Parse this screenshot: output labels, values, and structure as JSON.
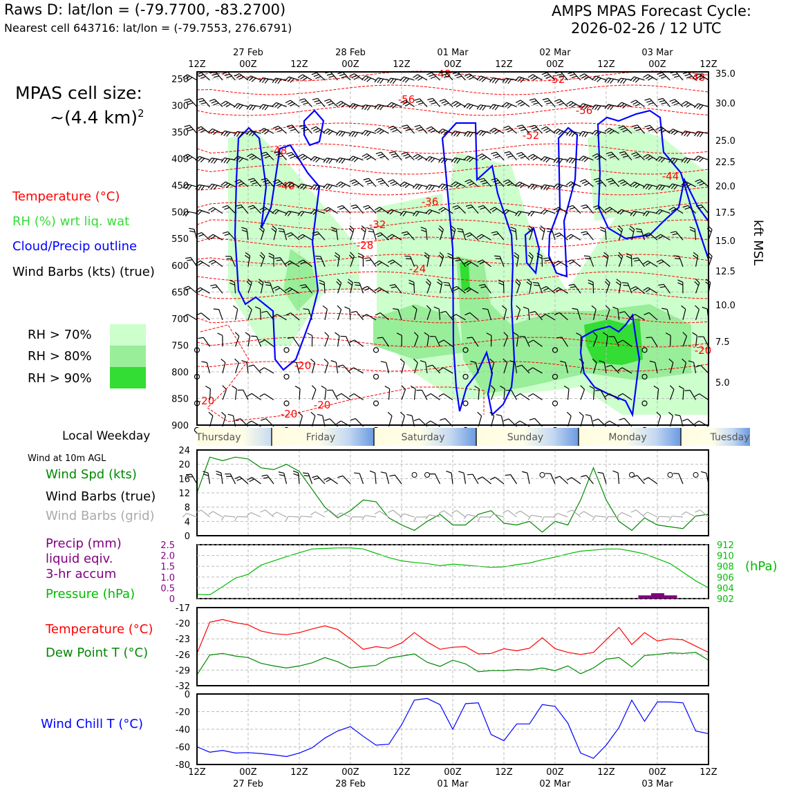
{
  "header": {
    "station_line": "Raws D: lat/lon = (-79.7700, -83.2700)",
    "cell_line": "Nearest cell 643716: lat/lon = (-79.7553, 276.6791)",
    "cycle_title": "AMPS MPAS Forecast Cycle:",
    "cycle_time": "2026-02-26 / 12 UTC"
  },
  "left_legend": {
    "cell_size_label": "MPAS cell size:",
    "cell_size_value": "~(4.4 km)",
    "cell_size_exp": "2",
    "temperature": "Temperature (°C)",
    "rh": "RH (%) wrt liq. wat",
    "cloud": "Cloud/Precip outline",
    "wind_barbs": "Wind Barbs (kts) (true)",
    "rh70": "RH > 70%",
    "rh80": "RH > 80%",
    "rh90": "RH > 90%",
    "weekday_label": "Local Weekday",
    "wind10": "Wind at 10m AGL",
    "wind_spd": "Wind Spd (kts)",
    "barbs_true": "Wind Barbs (true)",
    "barbs_grid": "Wind Barbs (grid)",
    "precip1": "Precip (mm)",
    "precip2": "liquid eqiv.",
    "precip3": "3-hr accum",
    "pressure": "Pressure (hPa)",
    "temp2": "Temperature (°C)",
    "dew": "Dew Point T (°C)",
    "windchill": "Wind Chill T (°C)",
    "hpa_unit": "(hPa)",
    "kft_label": "kft MSL"
  },
  "colors": {
    "temperature": "#ff0000",
    "rh_text": "#33dd33",
    "rh70": "#ccffcc",
    "rh80": "#99ee99",
    "rh90": "#33dd33",
    "cloud": "#0000ff",
    "wind_green": "#008800",
    "grid_barb": "#aaaaaa",
    "precip": "#800080",
    "pressure": "#00bb00",
    "dew": "#008800",
    "windchill": "#0000ff"
  },
  "chart_data": [
    {
      "type": "area",
      "name": "vertical profile",
      "y_pressure_ticks": [
        "250",
        "300",
        "350",
        "400",
        "450",
        "500",
        "550",
        "600",
        "650",
        "700",
        "750",
        "800",
        "850",
        "900"
      ],
      "y_kft_ticks": [
        "35.0",
        "30.0",
        "25.0",
        "22.5",
        "20.0",
        "17.5",
        "15.0",
        "12.5",
        "10.0",
        "7.5",
        "5.0"
      ],
      "x_top_hours": [
        "12Z",
        "00Z",
        "12Z",
        "00Z",
        "12Z",
        "00Z",
        "12Z",
        "00Z",
        "12Z",
        "00Z",
        "12Z"
      ],
      "x_top_dates": [
        "27 Feb",
        "28 Feb",
        "01 Mar",
        "02 Mar",
        "03 Mar"
      ],
      "temperature_labels": [
        "-48",
        "-52",
        "-48",
        "-56",
        "-56",
        "-52",
        "-48",
        "-44",
        "-40",
        "-36",
        "-32",
        "-28",
        "-24",
        "-20",
        "-20",
        "-20",
        "-20",
        "-20"
      ]
    },
    {
      "type": "table",
      "name": "local weekday",
      "days": [
        "Thursday",
        "Friday",
        "Saturday",
        "Sunday",
        "Monday",
        "Tuesday"
      ]
    },
    {
      "type": "line",
      "name": "wind at 10m",
      "ylim": [
        0,
        24
      ],
      "yticks": [
        "24",
        "20",
        "16",
        "12",
        "8",
        "4",
        "0"
      ],
      "series": [
        {
          "name": "Wind Spd (kts)",
          "values": [
            12,
            22,
            21,
            22,
            21.5,
            19,
            18.5,
            20,
            18,
            13,
            8,
            5,
            7,
            10,
            9.5,
            5,
            3,
            1.5,
            4,
            6,
            3,
            3,
            6,
            7,
            3.5,
            3,
            4,
            1,
            4,
            3,
            10,
            19,
            10,
            4,
            1.5,
            5,
            3,
            2.5,
            2,
            5.5,
            6
          ]
        }
      ]
    },
    {
      "type": "line",
      "name": "pressure and precip",
      "ylim_precip": [
        0,
        2.5
      ],
      "precip_ticks": [
        "2.5",
        "2.0",
        "1.5",
        "1.0",
        "0.5",
        "0"
      ],
      "ylim_pressure": [
        902,
        912
      ],
      "pressure_ticks": [
        "912",
        "910",
        "908",
        "906",
        "904",
        "902"
      ],
      "series": [
        {
          "name": "Pressure (hPa)",
          "values": [
            902.8,
            902.7,
            904.2,
            905.8,
            906.5,
            908.2,
            909.0,
            909.8,
            910.5,
            911.2,
            911.3,
            911.4,
            911.4,
            911.2,
            910.4,
            909.6,
            909.0,
            908.7,
            908.5,
            908.1,
            908.4,
            908.2,
            908.0,
            907.8,
            907.9,
            908.3,
            908.6,
            909.2,
            909.7,
            910.3,
            910.8,
            911.0,
            911.2,
            911.2,
            910.8,
            910.3,
            909.4,
            908.5,
            906.9,
            905.3,
            904.0
          ]
        },
        {
          "name": "Precip (mm)",
          "values": [
            0,
            0,
            0,
            0,
            0,
            0,
            0,
            0,
            0,
            0,
            0,
            0,
            0,
            0,
            0,
            0,
            0,
            0,
            0,
            0,
            0,
            0,
            0,
            0,
            0,
            0,
            0,
            0,
            0,
            0,
            0,
            0,
            0,
            0,
            0,
            0.15,
            0.25,
            0.15,
            0,
            0,
            0
          ]
        }
      ]
    },
    {
      "type": "line",
      "name": "temperature and dew point",
      "ylim": [
        -32,
        -17
      ],
      "yticks": [
        "-17",
        "-20",
        "-23",
        "-26",
        "-29",
        "-32"
      ],
      "series": [
        {
          "name": "Temperature (°C)",
          "values": [
            -25.8,
            -19.8,
            -19.3,
            -19.9,
            -20.3,
            -21.5,
            -22.0,
            -22.2,
            -21.8,
            -21.1,
            -20.5,
            -21.2,
            -23.0,
            -25.0,
            -24.5,
            -24.8,
            -23.8,
            -21.8,
            -23.6,
            -25.0,
            -24.6,
            -24.5,
            -25.9,
            -25.8,
            -24.9,
            -25.3,
            -24.8,
            -22.8,
            -24.9,
            -25.6,
            -26.0,
            -25.6,
            -23.2,
            -20.8,
            -24.1,
            -21.8,
            -23.4,
            -23.0,
            -23.2,
            -24.4,
            -25.6
          ]
        },
        {
          "name": "Dew Point T (°C)",
          "values": [
            -29.9,
            -26.1,
            -25.8,
            -26.3,
            -26.6,
            -27.7,
            -28.2,
            -28.6,
            -28.2,
            -27.6,
            -26.6,
            -27.4,
            -28.6,
            -28.3,
            -28.1,
            -26.7,
            -26.3,
            -25.9,
            -27.5,
            -28.3,
            -27.1,
            -27.8,
            -29.3,
            -29.1,
            -29.1,
            -28.9,
            -29.0,
            -28.6,
            -29.1,
            -28.2,
            -29.7,
            -28.6,
            -26.9,
            -26.6,
            -28.4,
            -26.2,
            -26.0,
            -25.7,
            -25.8,
            -25.6,
            -27.1
          ]
        }
      ]
    },
    {
      "type": "line",
      "name": "wind chill",
      "ylim": [
        -80,
        0
      ],
      "yticks": [
        "0",
        "-20",
        "-40",
        "-60",
        "-80"
      ],
      "series": [
        {
          "name": "Wind Chill T (°C)",
          "values": [
            -60,
            -66,
            -64,
            -67,
            -66.5,
            -67.5,
            -69,
            -71,
            -67,
            -61,
            -50,
            -42,
            -37,
            -48,
            -58,
            -57,
            -35,
            -7,
            -5,
            -12,
            -40,
            -11,
            -10,
            -46,
            -53,
            -34,
            -34,
            -12,
            -14,
            -33,
            -67,
            -73,
            -58,
            -38,
            -7,
            -31,
            -9,
            -9,
            -10,
            -42,
            -45
          ]
        }
      ]
    }
  ],
  "bottom_axis": {
    "hours": [
      "12Z",
      "00Z",
      "12Z",
      "00Z",
      "12Z",
      "00Z",
      "12Z",
      "00Z",
      "12Z",
      "00Z",
      "12Z"
    ],
    "dates": [
      "27 Feb",
      "28 Feb",
      "01 Mar",
      "02 Mar",
      "03 Mar"
    ]
  }
}
